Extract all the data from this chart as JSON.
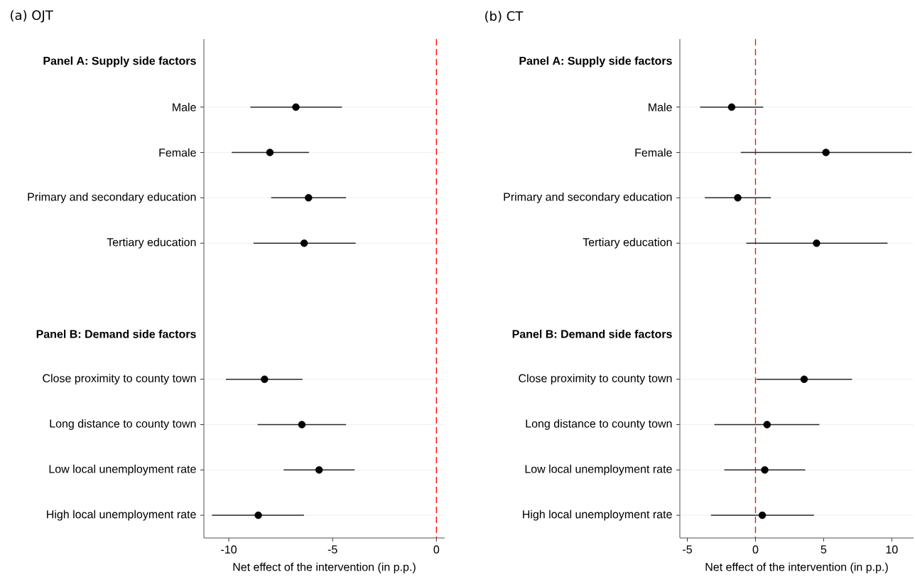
{
  "chart_data": [
    {
      "type": "scatter",
      "title": "(a) OJT",
      "xlabel": "Net effect of the intervention (in p.p.)",
      "orientation": "horizontal",
      "marker": "circle",
      "color": "#000000",
      "grid": "y",
      "categories": [
        "Panel A: Supply side factors",
        "Male",
        "Female",
        "Primary and secondary education",
        "Tertiary education",
        null,
        "Panel B: Demand side factors",
        "Close proximity to county town",
        "Long distance to county town",
        "Low local unemployment rate",
        "High local unemployment rate"
      ],
      "values": [
        null,
        -6.77,
        -8.02,
        -6.16,
        -6.37,
        null,
        null,
        -8.28,
        -6.48,
        -5.65,
        -8.58
      ],
      "errors": [
        null,
        [
          -8.96,
          -4.55
        ],
        [
          -9.86,
          -6.14
        ],
        [
          -7.96,
          -4.35
        ],
        [
          -8.81,
          -3.89
        ],
        null,
        null,
        [
          -10.14,
          -6.45
        ],
        [
          -8.61,
          -4.35
        ],
        [
          -7.36,
          -3.94
        ],
        [
          -10.81,
          -6.38
        ]
      ],
      "xlim": [
        -11.2,
        0.4
      ],
      "xticks": [
        -10,
        -5,
        0
      ],
      "ref_lines": [
        {
          "axis": "x",
          "value": 0,
          "color": "#ff0000",
          "line_style": "dashed"
        }
      ]
    },
    {
      "type": "scatter",
      "title": "(b) CT",
      "xlabel": "Net effect of the intervention (in p.p.)",
      "orientation": "horizontal",
      "marker": "circle",
      "color": "#000000",
      "grid": "y",
      "categories": [
        "Panel A: Supply side factors",
        "Male",
        "Female",
        "Primary and secondary education",
        "Tertiary education",
        null,
        "Panel B: Demand side factors",
        "Close proximity to county town",
        "Long distance to county town",
        "Low local unemployment rate",
        "High local unemployment rate"
      ],
      "values": [
        null,
        -1.75,
        5.17,
        -1.3,
        4.48,
        null,
        null,
        3.57,
        0.85,
        0.68,
        0.5
      ],
      "errors": [
        null,
        [
          -4.06,
          0.57
        ],
        [
          -1.08,
          11.46
        ],
        [
          -3.72,
          1.13
        ],
        [
          -0.68,
          9.69
        ],
        null,
        null,
        [
          0.07,
          7.08
        ],
        [
          -3.02,
          4.69
        ],
        [
          -2.29,
          3.65
        ],
        [
          -3.27,
          4.29
        ]
      ],
      "xlim": [
        -5.55,
        11.6
      ],
      "xticks": [
        -5,
        0,
        5,
        10
      ],
      "ref_lines": [
        {
          "axis": "x",
          "value": 0,
          "color": "#ff0000",
          "line_style": "dashed"
        }
      ]
    }
  ]
}
